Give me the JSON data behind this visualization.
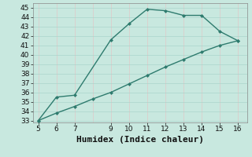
{
  "xlabel": "Humidex (Indice chaleur)",
  "bg_color": "#c8e8df",
  "line_color": "#2e7b6e",
  "hgrid_color": "#aad4cc",
  "vgrid_color": "#e0c8c8",
  "x_upper": [
    5,
    6,
    7,
    9,
    10,
    11,
    12,
    13,
    14,
    15,
    16
  ],
  "y_upper": [
    33.0,
    35.5,
    35.7,
    41.6,
    43.3,
    44.85,
    44.7,
    44.2,
    44.2,
    42.5,
    41.5
  ],
  "x_lower": [
    5,
    6,
    7,
    8,
    9,
    10,
    11,
    12,
    13,
    14,
    15,
    16
  ],
  "y_lower": [
    33.0,
    33.8,
    34.5,
    35.3,
    36.0,
    36.9,
    37.8,
    38.7,
    39.5,
    40.3,
    41.0,
    41.5
  ],
  "xlim": [
    4.7,
    16.5
  ],
  "ylim": [
    32.8,
    45.5
  ],
  "xticks": [
    5,
    6,
    7,
    9,
    10,
    11,
    12,
    13,
    14,
    15,
    16
  ],
  "yticks": [
    33,
    34,
    35,
    36,
    37,
    38,
    39,
    40,
    41,
    42,
    43,
    44,
    45
  ],
  "xgrid_ticks": [
    5,
    6,
    7,
    8,
    9,
    10,
    11,
    12,
    13,
    14,
    15,
    16
  ],
  "markersize": 2.5,
  "linewidth": 1.0,
  "xlabel_fontsize": 8,
  "tick_fontsize": 6.5
}
